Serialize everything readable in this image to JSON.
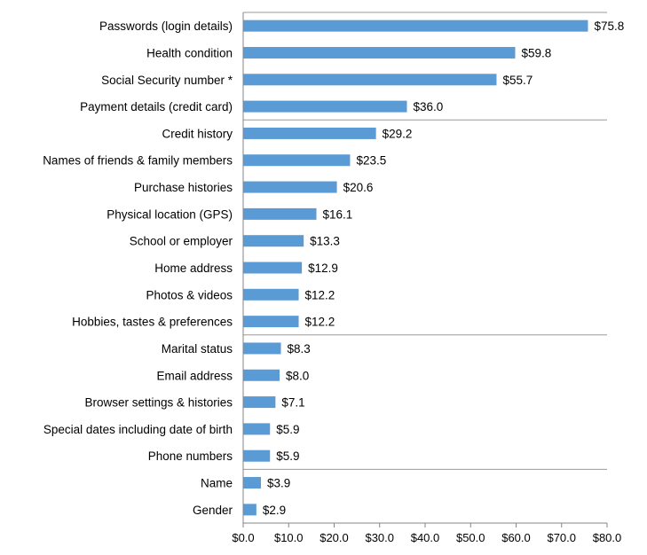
{
  "chart_data": {
    "type": "bar",
    "orientation": "horizontal",
    "title": "",
    "xlabel": "",
    "ylabel": "",
    "xlim": [
      0,
      80
    ],
    "xticks": [
      0,
      10,
      20,
      30,
      40,
      50,
      60,
      70,
      80
    ],
    "xtick_labels": [
      "$0.0",
      "$10.0",
      "$20.0",
      "$30.0",
      "$40.0",
      "$50.0",
      "$60.0",
      "$70.0",
      "$80.0"
    ],
    "grid": "horizontal separators",
    "legend": "none",
    "bar_color": "#5b9bd5",
    "categories": [
      "Passwords (login details)",
      "Health condition",
      "Social Security number *",
      "Payment details (credit card)",
      "Credit history",
      "Names of friends & family members",
      "Purchase histories",
      "Physical location (GPS)",
      "School or employer",
      "Home address",
      "Photos & videos",
      "Hobbies, tastes & preferences",
      "Marital status",
      "Email address",
      "Browser settings & histories",
      "Special dates including date of birth",
      "Phone numbers",
      "Name",
      "Gender"
    ],
    "values": [
      75.8,
      59.8,
      55.7,
      36.0,
      29.2,
      23.5,
      20.6,
      16.1,
      13.3,
      12.9,
      12.2,
      12.2,
      8.3,
      8.0,
      7.1,
      5.9,
      5.9,
      3.9,
      2.9
    ],
    "value_labels": [
      "$75.8",
      "$59.8",
      "$55.7",
      "$36.0",
      "$29.2",
      "$23.5",
      "$20.6",
      "$16.1",
      "$13.3",
      "$12.9",
      "$12.2",
      "$12.2",
      "$8.3",
      "$8.0",
      "$7.1",
      "$5.9",
      "$5.9",
      "$3.9",
      "$2.9"
    ]
  }
}
